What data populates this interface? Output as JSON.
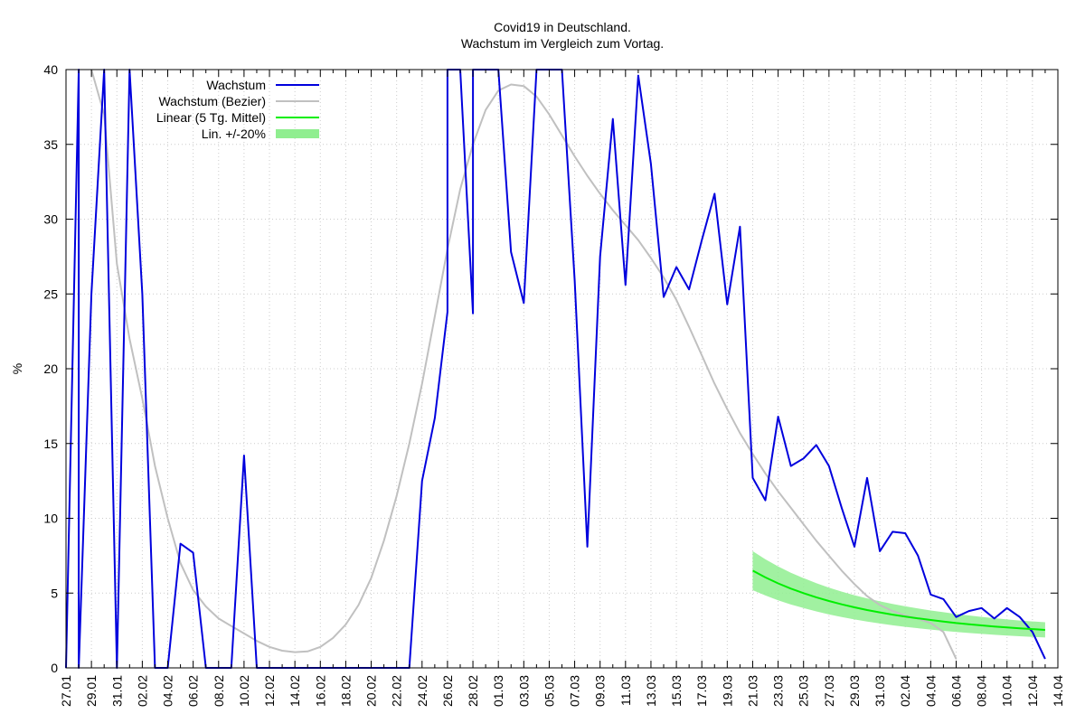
{
  "chart_data": {
    "type": "line",
    "title": "Covid19 in Deutschland.",
    "subtitle": "Wachstum im Vergleich zum Vortag.",
    "ylabel": "%",
    "xlabel": "",
    "x_start_label": "27.01",
    "x_tick_labels": [
      "27.01",
      "29.01",
      "31.01",
      "02.02",
      "04.02",
      "06.02",
      "08.02",
      "10.02",
      "12.02",
      "14.02",
      "16.02",
      "18.02",
      "20.02",
      "22.02",
      "24.02",
      "26.02",
      "28.02",
      "01.03",
      "03.03",
      "05.03",
      "07.03",
      "09.03",
      "11.03",
      "13.03",
      "15.03",
      "17.03",
      "19.03",
      "21.03",
      "23.03",
      "25.03",
      "27.03",
      "29.03",
      "31.03",
      "02.04",
      "04.04",
      "06.04",
      "08.04",
      "10.04",
      "12.04",
      "14.04"
    ],
    "y_ticks": [
      0,
      5,
      10,
      15,
      20,
      25,
      30,
      35,
      40
    ],
    "ylim": [
      0,
      40
    ],
    "grid": true,
    "legend_position": "top-left",
    "legend": [
      {
        "label": "Wachstum",
        "color": "#0000dd",
        "style": "line"
      },
      {
        "label": "Wachstum (Bezier)",
        "color": "#c0c0c0",
        "style": "line"
      },
      {
        "label": "Linear (5 Tg. Mittel)",
        "color": "#00ee00",
        "style": "line"
      },
      {
        "label": "Lin. +/-20%",
        "color": "#90ee90",
        "style": "band"
      }
    ],
    "series": [
      {
        "name": "Wachstum",
        "color": "#0000dd",
        "points": [
          [
            "27.01",
            0
          ],
          [
            "28.01",
            40
          ],
          [
            "28.01",
            0
          ],
          [
            "29.01",
            25
          ],
          [
            "30.01",
            40
          ],
          [
            "31.01",
            0
          ],
          [
            "01.02",
            40
          ],
          [
            "02.02",
            25
          ],
          [
            "03.02",
            0
          ],
          [
            "04.02",
            0
          ],
          [
            "05.02",
            8.3
          ],
          [
            "06.02",
            7.7
          ],
          [
            "07.02",
            0
          ],
          [
            "08.02",
            0
          ],
          [
            "09.02",
            0
          ],
          [
            "10.02",
            14.2
          ],
          [
            "11.02",
            0
          ],
          [
            "12.02",
            0
          ],
          [
            "13.02",
            0
          ],
          [
            "14.02",
            0
          ],
          [
            "15.02",
            0
          ],
          [
            "16.02",
            0
          ],
          [
            "17.02",
            0
          ],
          [
            "18.02",
            0
          ],
          [
            "19.02",
            0
          ],
          [
            "20.02",
            0
          ],
          [
            "21.02",
            0
          ],
          [
            "22.02",
            0
          ],
          [
            "23.02",
            0
          ],
          [
            "24.02",
            12.5
          ],
          [
            "25.02",
            16.7
          ],
          [
            "26.02",
            23.8
          ],
          [
            "26.02",
            40
          ],
          [
            "27.02",
            40
          ],
          [
            "28.02",
            23.7
          ],
          [
            "28.02",
            40
          ],
          [
            "29.02",
            40
          ],
          [
            "01.03",
            40
          ],
          [
            "02.03",
            27.8
          ],
          [
            "03.03",
            24.4
          ],
          [
            "04.03",
            40
          ],
          [
            "05.03",
            40
          ],
          [
            "06.03",
            40
          ],
          [
            "07.03",
            25.9
          ],
          [
            "08.03",
            8.1
          ],
          [
            "09.03",
            27.5
          ],
          [
            "10.03",
            36.7
          ],
          [
            "11.03",
            25.6
          ],
          [
            "12.03",
            39.6
          ],
          [
            "13.03",
            33.7
          ],
          [
            "14.03",
            24.8
          ],
          [
            "15.03",
            26.8
          ],
          [
            "16.03",
            25.3
          ],
          [
            "17.03",
            28.6
          ],
          [
            "18.03",
            31.7
          ],
          [
            "19.03",
            24.3
          ],
          [
            "20.03",
            29.5
          ],
          [
            "21.03",
            12.7
          ],
          [
            "22.03",
            11.2
          ],
          [
            "23.03",
            16.8
          ],
          [
            "24.03",
            13.5
          ],
          [
            "25.03",
            14.0
          ],
          [
            "26.03",
            14.9
          ],
          [
            "27.03",
            13.5
          ],
          [
            "28.03",
            10.7
          ],
          [
            "29.03",
            8.1
          ],
          [
            "30.03",
            12.7
          ],
          [
            "31.03",
            7.8
          ],
          [
            "01.04",
            9.1
          ],
          [
            "02.04",
            9.0
          ],
          [
            "03.04",
            7.5
          ],
          [
            "04.04",
            4.9
          ],
          [
            "05.04",
            4.6
          ],
          [
            "06.04",
            3.4
          ],
          [
            "07.04",
            3.8
          ],
          [
            "08.04",
            4.0
          ],
          [
            "09.04",
            3.3
          ],
          [
            "10.04",
            4.0
          ],
          [
            "11.04",
            3.4
          ],
          [
            "12.04",
            2.4
          ],
          [
            "13.04",
            0.6
          ]
        ]
      },
      {
        "name": "Wachstum (Bezier)",
        "color": "#c0c0c0",
        "points": [
          [
            "29.01",
            40
          ],
          [
            "30.01",
            37
          ],
          [
            "31.01",
            27
          ],
          [
            "01.02",
            22
          ],
          [
            "02.02",
            18
          ],
          [
            "03.02",
            13.5
          ],
          [
            "04.02",
            10
          ],
          [
            "05.02",
            7
          ],
          [
            "06.02",
            5.2
          ],
          [
            "07.02",
            4.1
          ],
          [
            "08.02",
            3.3
          ],
          [
            "09.02",
            2.8
          ],
          [
            "10.02",
            2.3
          ],
          [
            "11.02",
            1.8
          ],
          [
            "12.02",
            1.4
          ],
          [
            "13.02",
            1.15
          ],
          [
            "14.02",
            1.05
          ],
          [
            "15.02",
            1.1
          ],
          [
            "16.02",
            1.4
          ],
          [
            "17.02",
            2
          ],
          [
            "18.02",
            2.9
          ],
          [
            "19.02",
            4.2
          ],
          [
            "20.02",
            6
          ],
          [
            "21.02",
            8.5
          ],
          [
            "22.02",
            11.5
          ],
          [
            "23.02",
            15
          ],
          [
            "24.02",
            19
          ],
          [
            "25.02",
            23.5
          ],
          [
            "26.02",
            28
          ],
          [
            "27.02",
            32
          ],
          [
            "28.02",
            35
          ],
          [
            "29.02",
            37.3
          ],
          [
            "01.03",
            38.6
          ],
          [
            "02.03",
            39
          ],
          [
            "03.03",
            38.9
          ],
          [
            "04.03",
            38.2
          ],
          [
            "05.03",
            37
          ],
          [
            "06.03",
            35.6
          ],
          [
            "07.03",
            34.2
          ],
          [
            "08.03",
            32.9
          ],
          [
            "09.03",
            31.7
          ],
          [
            "10.03",
            30.6
          ],
          [
            "11.03",
            29.6
          ],
          [
            "12.03",
            28.6
          ],
          [
            "13.03",
            27.4
          ],
          [
            "14.03",
            26.1
          ],
          [
            "15.03",
            24.6
          ],
          [
            "16.03",
            22.8
          ],
          [
            "17.03",
            20.9
          ],
          [
            "18.03",
            19
          ],
          [
            "19.03",
            17.3
          ],
          [
            "20.03",
            15.7
          ],
          [
            "21.03",
            14.3
          ],
          [
            "22.03",
            13
          ],
          [
            "23.03",
            11.8
          ],
          [
            "24.03",
            10.7
          ],
          [
            "25.03",
            9.6
          ],
          [
            "26.03",
            8.5
          ],
          [
            "27.03",
            7.5
          ],
          [
            "28.03",
            6.5
          ],
          [
            "29.03",
            5.6
          ],
          [
            "30.03",
            4.8
          ],
          [
            "31.03",
            4.2
          ],
          [
            "01.04",
            3.8
          ],
          [
            "02.04",
            3.5
          ],
          [
            "03.04",
            3.3
          ],
          [
            "04.04",
            3
          ],
          [
            "05.04",
            2.4
          ],
          [
            "06.04",
            0.6
          ]
        ]
      },
      {
        "name": "Linear (5 Tg. Mittel)",
        "color": "#00ee00",
        "points": [
          [
            "21.03",
            6.5
          ],
          [
            "22.03",
            6.05
          ],
          [
            "23.03",
            5.65
          ],
          [
            "24.03",
            5.3
          ],
          [
            "25.03",
            5.0
          ],
          [
            "26.03",
            4.72
          ],
          [
            "27.03",
            4.47
          ],
          [
            "28.03",
            4.25
          ],
          [
            "29.03",
            4.05
          ],
          [
            "30.03",
            3.87
          ],
          [
            "31.03",
            3.71
          ],
          [
            "01.04",
            3.56
          ],
          [
            "02.04",
            3.43
          ],
          [
            "03.04",
            3.31
          ],
          [
            "04.04",
            3.2
          ],
          [
            "05.04",
            3.1
          ],
          [
            "06.04",
            3.0
          ],
          [
            "07.04",
            2.92
          ],
          [
            "08.04",
            2.84
          ],
          [
            "09.04",
            2.77
          ],
          [
            "10.04",
            2.7
          ],
          [
            "11.04",
            2.64
          ],
          [
            "12.04",
            2.59
          ],
          [
            "13.04",
            2.54
          ]
        ]
      }
    ],
    "band": {
      "name": "Lin. +/-20%",
      "color": "#90ee90",
      "relative": 0.2
    }
  }
}
